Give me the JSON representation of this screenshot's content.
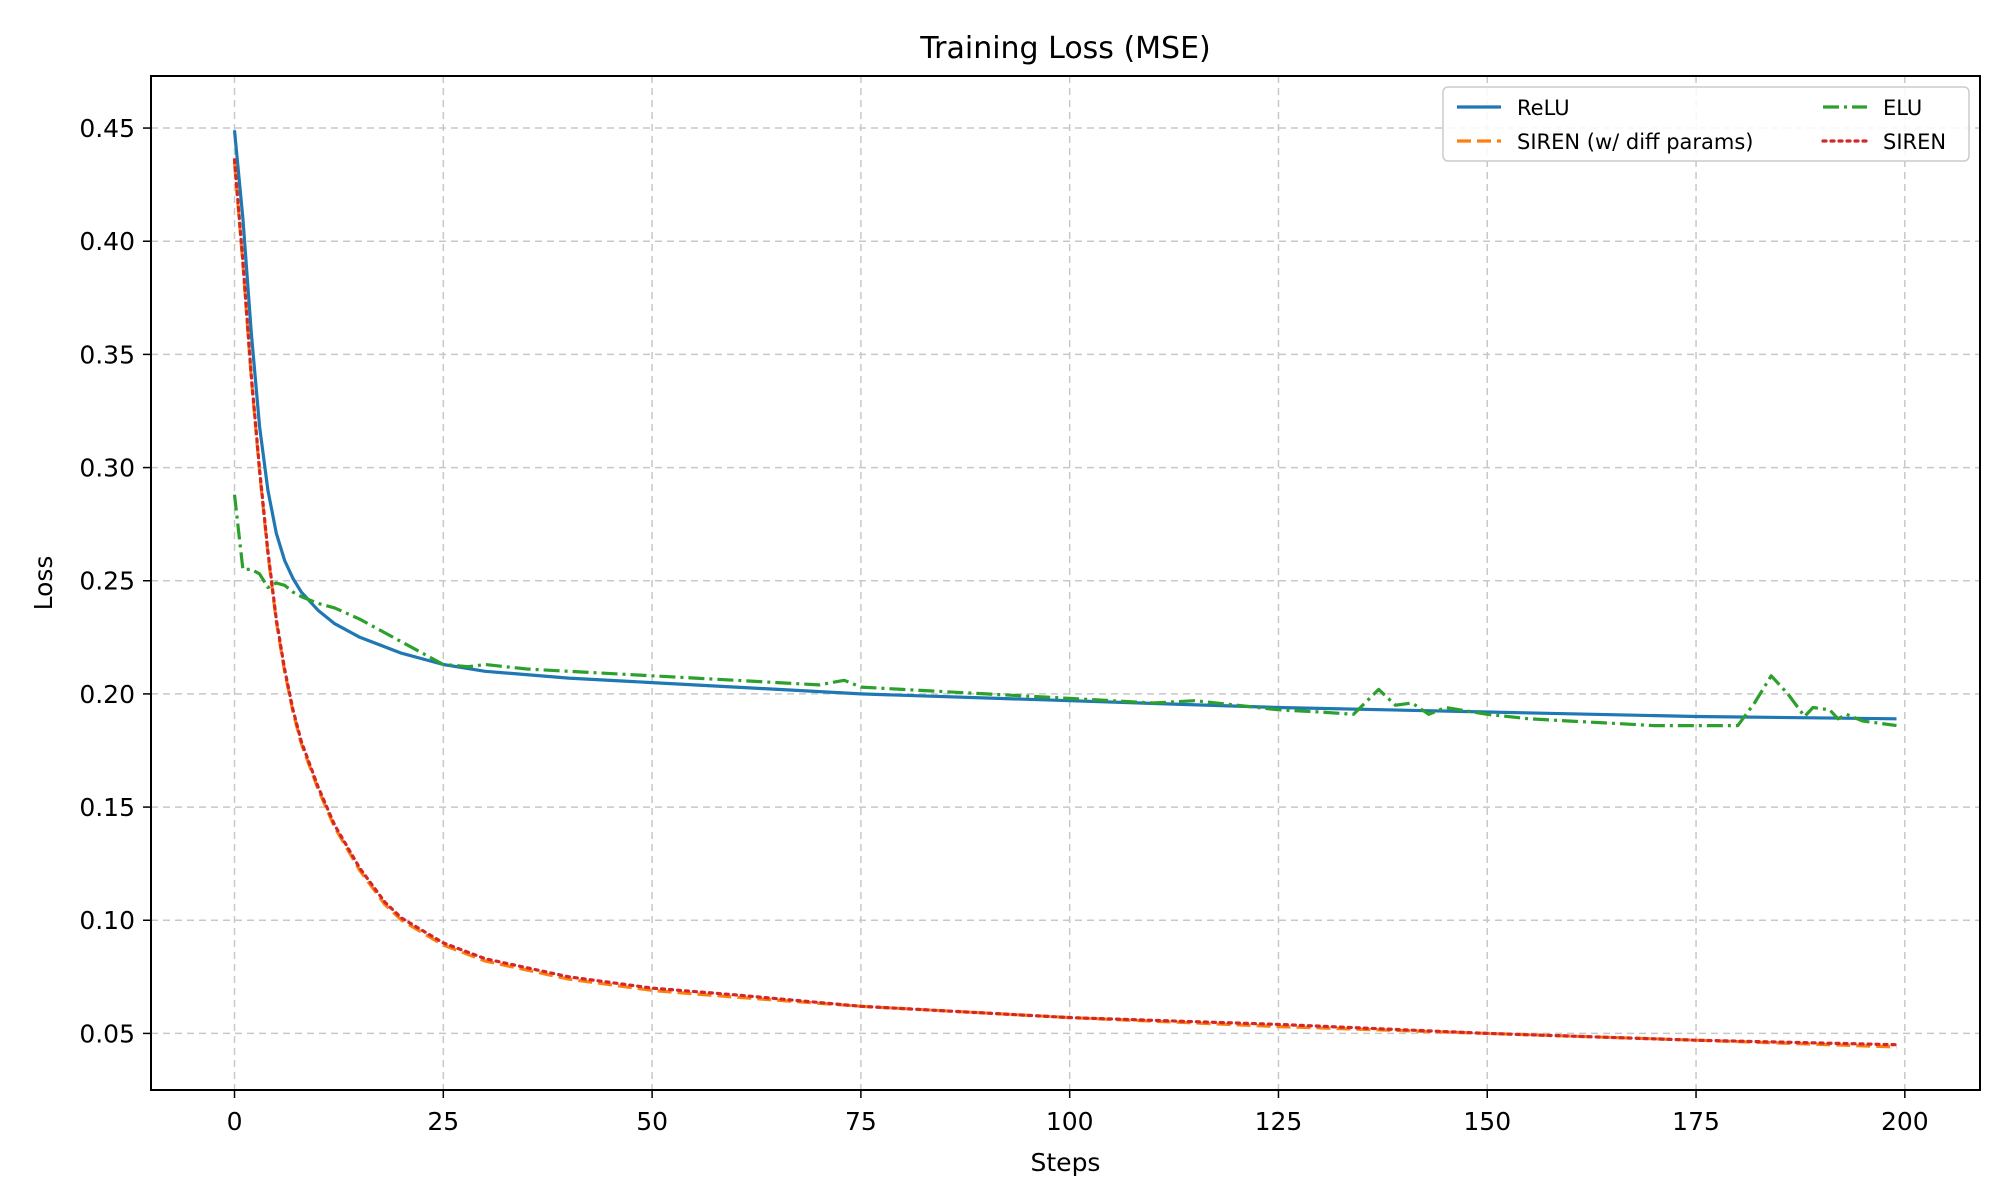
{
  "chart_data": {
    "type": "line",
    "title": "Training Loss (MSE)",
    "xlabel": "Steps",
    "ylabel": "Loss",
    "xlim": [
      -10,
      209
    ],
    "ylim": [
      0.025,
      0.473
    ],
    "xticks": [
      0,
      25,
      50,
      75,
      100,
      125,
      150,
      175,
      200
    ],
    "yticks": [
      0.05,
      0.1,
      0.15,
      0.2,
      0.25,
      0.3,
      0.35,
      0.4,
      0.45
    ],
    "xtick_labels": [
      "0",
      "25",
      "50",
      "75",
      "100",
      "125",
      "150",
      "175",
      "200"
    ],
    "ytick_labels": [
      "0.05",
      "0.10",
      "0.15",
      "0.20",
      "0.25",
      "0.30",
      "0.35",
      "0.40",
      "0.45"
    ],
    "grid": true,
    "legend_position": "top-right",
    "legend_columns": 2,
    "series": [
      {
        "name": "ReLU",
        "color": "#1f77b4",
        "dash": "solid",
        "points": [
          [
            0,
            0.449
          ],
          [
            1,
            0.41
          ],
          [
            2,
            0.36
          ],
          [
            3,
            0.318
          ],
          [
            4,
            0.29
          ],
          [
            5,
            0.271
          ],
          [
            6,
            0.259
          ],
          [
            7,
            0.251
          ],
          [
            8,
            0.245
          ],
          [
            10,
            0.237
          ],
          [
            12,
            0.231
          ],
          [
            15,
            0.225
          ],
          [
            20,
            0.218
          ],
          [
            25,
            0.213
          ],
          [
            30,
            0.21
          ],
          [
            40,
            0.207
          ],
          [
            50,
            0.205
          ],
          [
            60,
            0.203
          ],
          [
            75,
            0.2
          ],
          [
            100,
            0.197
          ],
          [
            125,
            0.194
          ],
          [
            150,
            0.192
          ],
          [
            175,
            0.19
          ],
          [
            199,
            0.189
          ]
        ]
      },
      {
        "name": "SIREN (w/ diff params)",
        "color": "#ff7f0e",
        "dash": "dashed",
        "points": [
          [
            0,
            0.435
          ],
          [
            1,
            0.39
          ],
          [
            2,
            0.34
          ],
          [
            3,
            0.298
          ],
          [
            4,
            0.262
          ],
          [
            5,
            0.232
          ],
          [
            6,
            0.21
          ],
          [
            7,
            0.192
          ],
          [
            8,
            0.178
          ],
          [
            10,
            0.158
          ],
          [
            12,
            0.141
          ],
          [
            15,
            0.122
          ],
          [
            18,
            0.107
          ],
          [
            20,
            0.1
          ],
          [
            25,
            0.089
          ],
          [
            30,
            0.082
          ],
          [
            40,
            0.074
          ],
          [
            50,
            0.069
          ],
          [
            60,
            0.066
          ],
          [
            75,
            0.062
          ],
          [
            100,
            0.057
          ],
          [
            125,
            0.053
          ],
          [
            150,
            0.05
          ],
          [
            175,
            0.047
          ],
          [
            199,
            0.044
          ]
        ]
      },
      {
        "name": "ELU",
        "color": "#2ca02c",
        "dash": "dashdot",
        "points": [
          [
            0,
            0.288
          ],
          [
            1,
            0.255
          ],
          [
            2,
            0.255
          ],
          [
            3,
            0.253
          ],
          [
            4,
            0.247
          ],
          [
            5,
            0.249
          ],
          [
            6,
            0.248
          ],
          [
            7,
            0.245
          ],
          [
            8,
            0.243
          ],
          [
            10,
            0.24
          ],
          [
            12,
            0.238
          ],
          [
            15,
            0.233
          ],
          [
            20,
            0.223
          ],
          [
            25,
            0.213
          ],
          [
            28,
            0.212
          ],
          [
            30,
            0.213
          ],
          [
            35,
            0.211
          ],
          [
            40,
            0.21
          ],
          [
            50,
            0.208
          ],
          [
            60,
            0.206
          ],
          [
            70,
            0.204
          ],
          [
            73,
            0.206
          ],
          [
            75,
            0.203
          ],
          [
            80,
            0.202
          ],
          [
            90,
            0.2
          ],
          [
            100,
            0.198
          ],
          [
            110,
            0.196
          ],
          [
            115,
            0.197
          ],
          [
            120,
            0.195
          ],
          [
            125,
            0.193
          ],
          [
            130,
            0.192
          ],
          [
            134,
            0.191
          ],
          [
            137,
            0.202
          ],
          [
            139,
            0.195
          ],
          [
            141,
            0.196
          ],
          [
            143,
            0.191
          ],
          [
            145,
            0.194
          ],
          [
            150,
            0.191
          ],
          [
            155,
            0.189
          ],
          [
            160,
            0.188
          ],
          [
            165,
            0.187
          ],
          [
            170,
            0.186
          ],
          [
            175,
            0.186
          ],
          [
            180,
            0.186
          ],
          [
            182,
            0.196
          ],
          [
            184,
            0.208
          ],
          [
            186,
            0.2
          ],
          [
            188,
            0.19
          ],
          [
            189,
            0.194
          ],
          [
            191,
            0.193
          ],
          [
            192,
            0.189
          ],
          [
            193,
            0.191
          ],
          [
            195,
            0.188
          ],
          [
            197,
            0.187
          ],
          [
            199,
            0.186
          ]
        ]
      },
      {
        "name": "SIREN",
        "color": "#d62728",
        "dash": "dotted",
        "points": [
          [
            0,
            0.436
          ],
          [
            1,
            0.391
          ],
          [
            2,
            0.341
          ],
          [
            3,
            0.299
          ],
          [
            4,
            0.263
          ],
          [
            5,
            0.233
          ],
          [
            6,
            0.211
          ],
          [
            7,
            0.193
          ],
          [
            8,
            0.179
          ],
          [
            10,
            0.159
          ],
          [
            12,
            0.142
          ],
          [
            15,
            0.123
          ],
          [
            18,
            0.108
          ],
          [
            20,
            0.101
          ],
          [
            25,
            0.09
          ],
          [
            30,
            0.083
          ],
          [
            40,
            0.075
          ],
          [
            50,
            0.07
          ],
          [
            60,
            0.067
          ],
          [
            75,
            0.062
          ],
          [
            100,
            0.057
          ],
          [
            125,
            0.054
          ],
          [
            150,
            0.05
          ],
          [
            175,
            0.047
          ],
          [
            199,
            0.045
          ]
        ]
      }
    ]
  }
}
